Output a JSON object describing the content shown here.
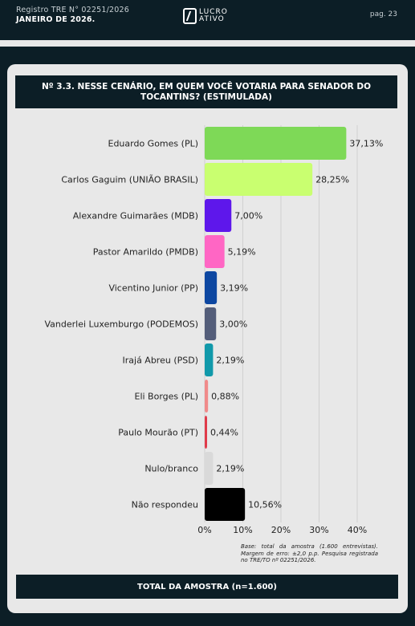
{
  "header": {
    "registry": "Registro TRE N° 02251/2026",
    "month": "JANEIRO DE 2026.",
    "logo_line1": "LUCRO",
    "logo_line2": "ATIVO",
    "page": "pag. 23"
  },
  "note": "Base: total da amostra (1.600 entrevistas). Margem de erro: ±2,0 p.p. Pesquisa registrada no TRE/TO nº 02251/2026.",
  "total_label": "TOTAL DA AMOSTRA (n=1.600)",
  "chart_data": {
    "type": "bar",
    "orientation": "horizontal",
    "title": "Nº 3.3. NESSE CENÁRIO, EM QUEM VOCÊ VOTARIA PARA SENADOR DO TOCANTINS? (ESTIMULADA)",
    "categories": [
      "Eduardo Gomes (PL)",
      "Carlos Gaguim (UNIÃO BRASIL)",
      "Alexandre Guimarães (MDB)",
      "Pastor Amarildo (PMDB)",
      "Vicentino Junior (PP)",
      "Vanderlei Luxemburgo (PODEMOS)",
      "Irajá Abreu (PSD)",
      "Eli Borges (PL)",
      "Paulo Mourão (PT)",
      "Nulo/branco",
      "Não respondeu"
    ],
    "values": [
      37.13,
      28.25,
      7.0,
      5.19,
      3.19,
      3.0,
      2.19,
      0.88,
      0.44,
      2.19,
      10.56
    ],
    "value_labels": [
      "37,13%",
      "28,25%",
      "7,00%",
      "5,19%",
      "3,19%",
      "3,00%",
      "2,19%",
      "0,88%",
      "0,44%",
      "2,19%",
      "10,56%"
    ],
    "colors": [
      "#7ed957",
      "#c9ff70",
      "#5e17eb",
      "#ff66c4",
      "#0d47a1",
      "#545e7a",
      "#1199aa",
      "#f08a8a",
      "#e03a4a",
      "#d9d9d9",
      "#000000"
    ],
    "xlim": [
      0,
      40
    ],
    "xticks": [
      0,
      10,
      20,
      30,
      40
    ],
    "xtick_labels": [
      "0%",
      "10%",
      "20%",
      "30%",
      "40%"
    ],
    "grid": true
  }
}
